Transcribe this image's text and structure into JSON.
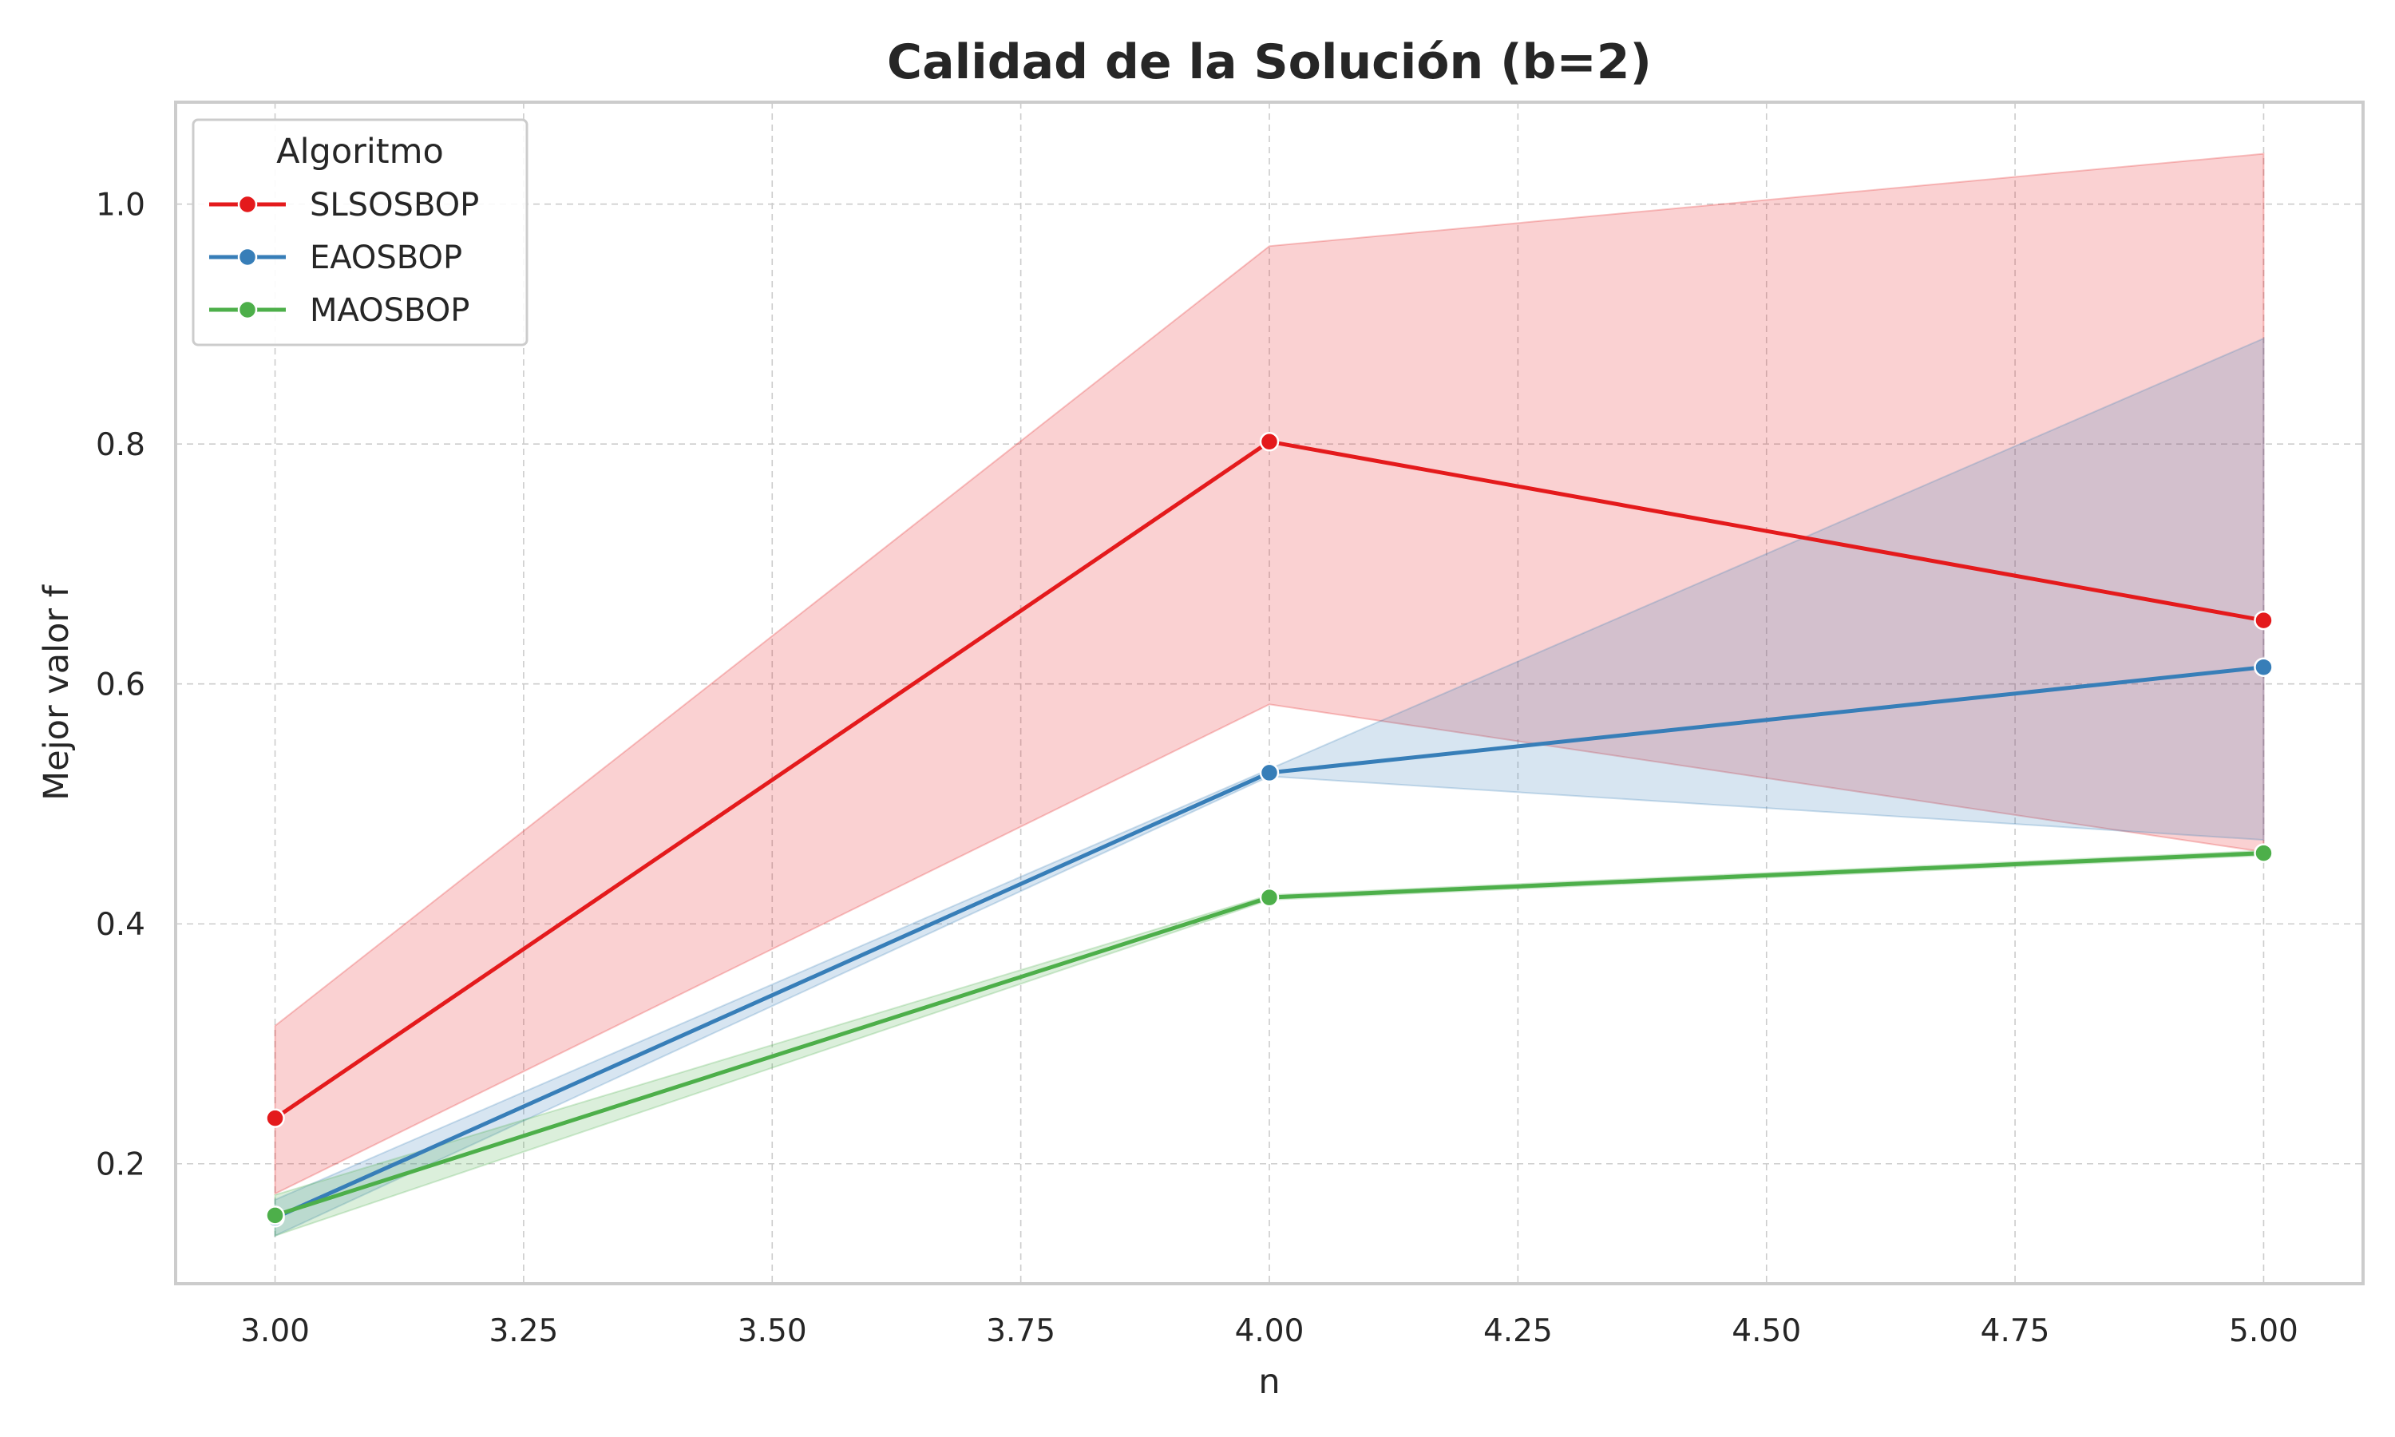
{
  "chart_data": {
    "type": "line",
    "title": "Calidad de la Solución (b=2)",
    "xlabel": "n",
    "ylabel": "Mejor valor f",
    "xlim": [
      2.9,
      5.1
    ],
    "ylim": [
      0.1,
      1.085
    ],
    "x_ticks": [
      3.0,
      3.25,
      3.5,
      3.75,
      4.0,
      4.25,
      4.5,
      4.75,
      5.0
    ],
    "x_tick_labels": [
      "3.00",
      "3.25",
      "3.50",
      "3.75",
      "4.00",
      "4.25",
      "4.50",
      "4.75",
      "5.00"
    ],
    "y_ticks": [
      0.2,
      0.4,
      0.6,
      0.8,
      1.0
    ],
    "y_tick_labels": [
      "0.2",
      "0.4",
      "0.6",
      "0.8",
      "1.0"
    ],
    "grid": true,
    "legend": {
      "title": "Algoritmo",
      "position": "top-left"
    },
    "x": [
      3.0,
      4.0,
      5.0
    ],
    "series": [
      {
        "name": "SLSOSBOP",
        "color": "#e41a1c",
        "values": [
          0.238,
          0.802,
          0.653
        ],
        "ci_lower": [
          0.175,
          0.583,
          0.46
        ],
        "ci_upper": [
          0.315,
          0.965,
          1.042
        ]
      },
      {
        "name": "EAOSBOP",
        "color": "#377eb8",
        "values": [
          0.155,
          0.526,
          0.614
        ],
        "ci_lower": [
          0.14,
          0.523,
          0.47
        ],
        "ci_upper": [
          0.17,
          0.529,
          0.888
        ]
      },
      {
        "name": "MAOSBOP",
        "color": "#4daf4a",
        "values": [
          0.157,
          0.422,
          0.459
        ],
        "ci_lower": [
          0.14,
          0.42,
          0.457
        ],
        "ci_upper": [
          0.174,
          0.424,
          0.461
        ]
      }
    ]
  }
}
